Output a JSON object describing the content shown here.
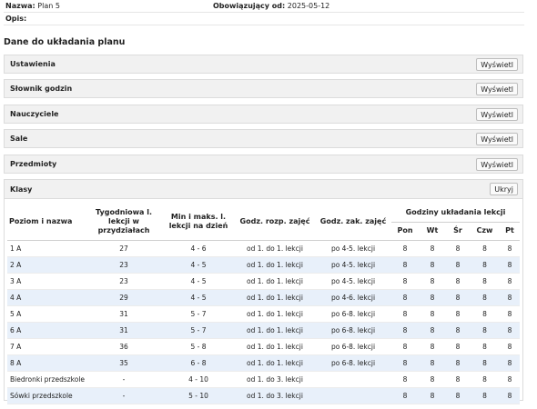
{
  "meta": {
    "name_label": "Nazwa:",
    "name_value": "Plan 5",
    "valid_label": "Obowiązujący od:",
    "valid_value": "2025-05-12",
    "desc_label": "Opis:"
  },
  "section_title": "Dane do układania planu",
  "panels": [
    {
      "title": "Ustawienia",
      "button": "Wyświetl"
    },
    {
      "title": "Słownik godzin",
      "button": "Wyświetl"
    },
    {
      "title": "Nauczyciele",
      "button": "Wyświetl"
    },
    {
      "title": "Sale",
      "button": "Wyświetl"
    },
    {
      "title": "Przedmioty",
      "button": "Wyświetl"
    }
  ],
  "klasy": {
    "title": "Klasy",
    "button": "Ukryj",
    "headers": {
      "level": "Poziom i nazwa",
      "weekly": "Tygodniowa l. lekcji w przydziałach",
      "minmax": "Min i maks. l. lekcji na dzień",
      "start": "Godz. rozp. zajęć",
      "end": "Godz. zak. zajęć",
      "hours_group": "Godziny układania lekcji",
      "days": [
        "Pon",
        "Wt",
        "Śr",
        "Czw",
        "Pt"
      ]
    },
    "rows": [
      {
        "name": "1 A",
        "weekly": "27",
        "minmax": "4 - 6",
        "start": "od 1. do 1. lekcji",
        "end": "po 4-5. lekcji",
        "days": [
          "8",
          "8",
          "8",
          "8",
          "8"
        ]
      },
      {
        "name": "2 A",
        "weekly": "23",
        "minmax": "4 - 5",
        "start": "od 1. do 1. lekcji",
        "end": "po 4-5. lekcji",
        "days": [
          "8",
          "8",
          "8",
          "8",
          "8"
        ]
      },
      {
        "name": "3 A",
        "weekly": "23",
        "minmax": "4 - 5",
        "start": "od 1. do 1. lekcji",
        "end": "po 4-5. lekcji",
        "days": [
          "8",
          "8",
          "8",
          "8",
          "8"
        ]
      },
      {
        "name": "4 A",
        "weekly": "29",
        "minmax": "4 - 5",
        "start": "od 1. do 1. lekcji",
        "end": "po 4-6. lekcji",
        "days": [
          "8",
          "8",
          "8",
          "8",
          "8"
        ]
      },
      {
        "name": "5 A",
        "weekly": "31",
        "minmax": "5 - 7",
        "start": "od 1. do 1. lekcji",
        "end": "po 6-8. lekcji",
        "days": [
          "8",
          "8",
          "8",
          "8",
          "8"
        ]
      },
      {
        "name": "6 A",
        "weekly": "31",
        "minmax": "5 - 7",
        "start": "od 1. do 1. lekcji",
        "end": "po 6-8. lekcji",
        "days": [
          "8",
          "8",
          "8",
          "8",
          "8"
        ]
      },
      {
        "name": "7 A",
        "weekly": "36",
        "minmax": "5 - 8",
        "start": "od 1. do 1. lekcji",
        "end": "po 6-8. lekcji",
        "days": [
          "8",
          "8",
          "8",
          "8",
          "8"
        ]
      },
      {
        "name": "8 A",
        "weekly": "35",
        "minmax": "6 - 8",
        "start": "od 1. do 1. lekcji",
        "end": "po 6-8. lekcji",
        "days": [
          "8",
          "8",
          "8",
          "8",
          "8"
        ]
      },
      {
        "name": "Biedronki przedszkole",
        "weekly": "-",
        "minmax": "4 - 10",
        "start": "od 1. do 3. lekcji",
        "end": "",
        "days": [
          "8",
          "8",
          "8",
          "8",
          "8"
        ]
      },
      {
        "name": "Sówki przedszkole",
        "weekly": "-",
        "minmax": "5 - 10",
        "start": "od 1. do 3. lekcji",
        "end": "",
        "days": [
          "8",
          "8",
          "8",
          "8",
          "8"
        ]
      }
    ]
  }
}
